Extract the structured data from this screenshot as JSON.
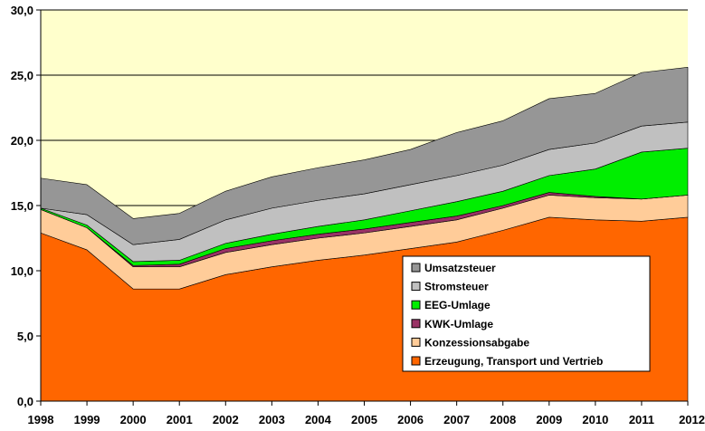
{
  "chart_data": {
    "type": "area",
    "stacked": true,
    "title": "",
    "xlabel": "",
    "ylabel": "",
    "ylim": [
      0,
      30
    ],
    "ytick_step": 5,
    "grid": true,
    "legend_position": "lower-right",
    "plot_background": "#FFFFCC",
    "x": [
      "1998",
      "1999",
      "2000",
      "2001",
      "2002",
      "2003",
      "2004",
      "2005",
      "2006",
      "2007",
      "2008",
      "2009",
      "2010",
      "2011",
      "2012"
    ],
    "y_tick_labels": [
      "0,0",
      "5,0",
      "10,0",
      "15,0",
      "20,0",
      "25,0",
      "30,0"
    ],
    "series": [
      {
        "name": "Erzeugung, Transport und Vertrieb",
        "color": "#FF6600",
        "values": [
          12.9,
          11.6,
          8.6,
          8.6,
          9.7,
          10.3,
          10.8,
          11.2,
          11.7,
          12.2,
          13.1,
          14.1,
          13.9,
          13.8,
          14.1
        ]
      },
      {
        "name": "Konzessionsabgabe",
        "color": "#FFCC99",
        "values": [
          1.8,
          1.7,
          1.7,
          1.7,
          1.7,
          1.7,
          1.7,
          1.7,
          1.7,
          1.7,
          1.7,
          1.7,
          1.7,
          1.7,
          1.7
        ]
      },
      {
        "name": "KWK-Umlage",
        "color": "#993366",
        "values": [
          0.0,
          0.0,
          0.1,
          0.2,
          0.3,
          0.3,
          0.3,
          0.3,
          0.3,
          0.3,
          0.2,
          0.2,
          0.1,
          0.0,
          0.0
        ]
      },
      {
        "name": "EEG-Umlage",
        "color": "#00EE00",
        "values": [
          0.1,
          0.2,
          0.3,
          0.3,
          0.4,
          0.5,
          0.6,
          0.7,
          0.9,
          1.1,
          1.1,
          1.3,
          2.1,
          3.6,
          3.6
        ]
      },
      {
        "name": "Stromsteuer",
        "color": "#C0C0C0",
        "values": [
          0.0,
          0.8,
          1.3,
          1.6,
          1.8,
          2.0,
          2.0,
          2.0,
          2.0,
          2.0,
          2.0,
          2.0,
          2.0,
          2.0,
          2.0
        ]
      },
      {
        "name": "Umsatzsteuer",
        "color": "#969696",
        "values": [
          2.3,
          2.3,
          2.0,
          2.0,
          2.2,
          2.4,
          2.5,
          2.6,
          2.7,
          3.3,
          3.4,
          3.9,
          3.8,
          4.1,
          4.2
        ]
      }
    ]
  }
}
